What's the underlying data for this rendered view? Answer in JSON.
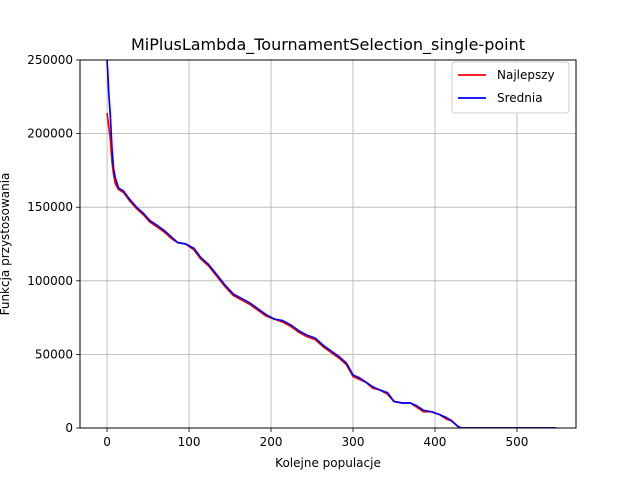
{
  "chart_data": {
    "type": "line",
    "title": "MiPlusLambda_TournamentSelection_single-point",
    "xlabel": "Kolejne populacje",
    "ylabel": "Funkcja przystosowania",
    "xlim": [
      -33,
      572
    ],
    "ylim": [
      0,
      250000
    ],
    "xticks": [
      0,
      100,
      200,
      300,
      400,
      500
    ],
    "yticks": [
      0,
      50000,
      100000,
      150000,
      200000,
      250000
    ],
    "xtick_labels": [
      "0",
      "100",
      "200",
      "300",
      "400",
      "500"
    ],
    "ytick_labels": [
      "0",
      "50000",
      "100000",
      "150000",
      "200000",
      "250000"
    ],
    "grid": true,
    "legend_position": "top-right",
    "series": [
      {
        "name": "Najlepszy",
        "color": "#ff0000",
        "points": [
          [
            0,
            214000
          ],
          [
            2,
            205000
          ],
          [
            4,
            196000
          ],
          [
            6,
            181000
          ],
          [
            8,
            172000
          ],
          [
            10,
            166000
          ],
          [
            14,
            162000
          ],
          [
            20,
            160000
          ],
          [
            28,
            154000
          ],
          [
            36,
            149000
          ],
          [
            44,
            145000
          ],
          [
            52,
            140000
          ],
          [
            60,
            137000
          ],
          [
            70,
            133000
          ],
          [
            78,
            129000
          ],
          [
            86,
            126000
          ],
          [
            96,
            125000
          ],
          [
            106,
            121000
          ],
          [
            114,
            115000
          ],
          [
            124,
            110000
          ],
          [
            134,
            103000
          ],
          [
            144,
            96000
          ],
          [
            154,
            90000
          ],
          [
            164,
            87000
          ],
          [
            174,
            84000
          ],
          [
            184,
            80000
          ],
          [
            194,
            76000
          ],
          [
            204,
            74000
          ],
          [
            214,
            72000
          ],
          [
            224,
            69000
          ],
          [
            234,
            65000
          ],
          [
            244,
            62000
          ],
          [
            254,
            60000
          ],
          [
            264,
            55000
          ],
          [
            274,
            51000
          ],
          [
            284,
            47000
          ],
          [
            292,
            43000
          ],
          [
            300,
            35000
          ],
          [
            308,
            33000
          ],
          [
            316,
            31000
          ],
          [
            324,
            27000
          ],
          [
            332,
            26000
          ],
          [
            342,
            23000
          ],
          [
            350,
            18000
          ],
          [
            360,
            17000
          ],
          [
            370,
            17000
          ],
          [
            378,
            14000
          ],
          [
            386,
            11000
          ],
          [
            396,
            11000
          ],
          [
            406,
            9000
          ],
          [
            414,
            6000
          ],
          [
            420,
            5000
          ],
          [
            424,
            3000
          ],
          [
            428,
            1000
          ],
          [
            432,
            0
          ],
          [
            460,
            0
          ],
          [
            500,
            0
          ],
          [
            548,
            0
          ]
        ]
      },
      {
        "name": "Srednia",
        "color": "#0000ff",
        "points": [
          [
            0,
            250000
          ],
          [
            1,
            240000
          ],
          [
            2,
            228000
          ],
          [
            4,
            212000
          ],
          [
            6,
            190000
          ],
          [
            8,
            176000
          ],
          [
            10,
            170000
          ],
          [
            14,
            163000
          ],
          [
            20,
            161000
          ],
          [
            28,
            155000
          ],
          [
            36,
            150000
          ],
          [
            44,
            146000
          ],
          [
            52,
            141000
          ],
          [
            60,
            138000
          ],
          [
            70,
            134000
          ],
          [
            78,
            130000
          ],
          [
            86,
            126000
          ],
          [
            96,
            125000
          ],
          [
            106,
            122000
          ],
          [
            114,
            116000
          ],
          [
            124,
            111000
          ],
          [
            134,
            104000
          ],
          [
            144,
            97000
          ],
          [
            154,
            91000
          ],
          [
            164,
            88000
          ],
          [
            174,
            85000
          ],
          [
            184,
            81000
          ],
          [
            194,
            77000
          ],
          [
            204,
            74000
          ],
          [
            214,
            73000
          ],
          [
            224,
            70000
          ],
          [
            234,
            66000
          ],
          [
            244,
            63000
          ],
          [
            254,
            61000
          ],
          [
            264,
            56000
          ],
          [
            274,
            52000
          ],
          [
            284,
            48000
          ],
          [
            292,
            44000
          ],
          [
            300,
            36000
          ],
          [
            308,
            34000
          ],
          [
            316,
            31000
          ],
          [
            324,
            28000
          ],
          [
            332,
            26000
          ],
          [
            342,
            24000
          ],
          [
            350,
            18000
          ],
          [
            360,
            17000
          ],
          [
            370,
            17000
          ],
          [
            378,
            15000
          ],
          [
            386,
            12000
          ],
          [
            396,
            11000
          ],
          [
            406,
            9000
          ],
          [
            414,
            7000
          ],
          [
            420,
            5000
          ],
          [
            424,
            3000
          ],
          [
            428,
            1000
          ],
          [
            432,
            0
          ],
          [
            460,
            0
          ],
          [
            500,
            0
          ],
          [
            548,
            0
          ]
        ]
      }
    ]
  }
}
